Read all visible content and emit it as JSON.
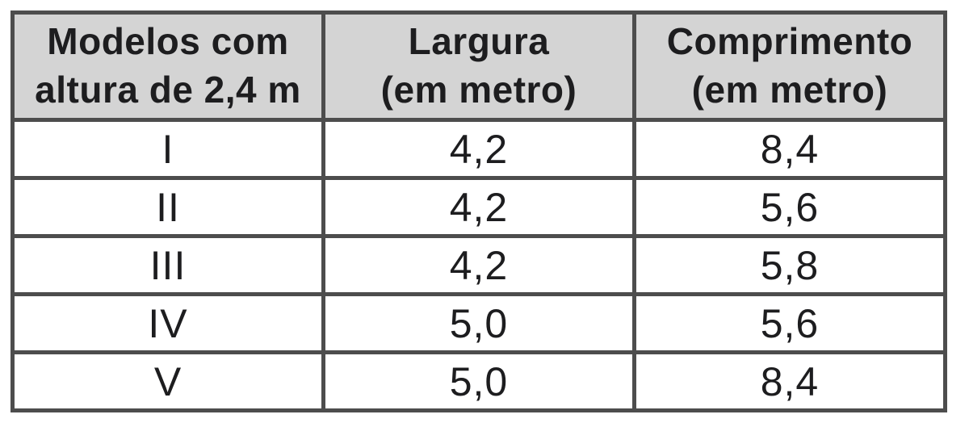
{
  "page": {
    "background": "#ffffff"
  },
  "table": {
    "style": {
      "header_bg": "#d4d4d4",
      "border_color": "#4d4d4d",
      "text_color": "#1d1d1f",
      "cell_bg": "#ffffff"
    },
    "headers": [
      {
        "label": "Modelos com altura de 2,4 m",
        "line1": "Modelos com",
        "line2": "altura de 2,4 m"
      },
      {
        "label": "Largura (em metro)",
        "line1": "Largura",
        "line2": "(em metro)"
      },
      {
        "label": "Comprimento (em metro)",
        "line1": "Comprimento",
        "line2": "(em metro)"
      }
    ],
    "rows": [
      {
        "model": "I",
        "largura": "4,2",
        "comprimento": "8,4"
      },
      {
        "model": "II",
        "largura": "4,2",
        "comprimento": "5,6"
      },
      {
        "model": "III",
        "largura": "4,2",
        "comprimento": "5,8"
      },
      {
        "model": "IV",
        "largura": "5,0",
        "comprimento": "5,6"
      },
      {
        "model": "V",
        "largura": "5,0",
        "comprimento": "8,4"
      }
    ]
  },
  "chart_data": {
    "type": "table",
    "columns": [
      "Modelos com altura de 2,4 m",
      "Largura (em metro)",
      "Comprimento (em metro)"
    ],
    "rows": [
      [
        "I",
        4.2,
        8.4
      ],
      [
        "II",
        4.2,
        5.6
      ],
      [
        "III",
        4.2,
        5.8
      ],
      [
        "IV",
        5.0,
        5.6
      ],
      [
        "V",
        5.0,
        8.4
      ]
    ],
    "notes": "Fixed height of all models: 2.4 m; widths and lengths in metres, decimal comma notation"
  }
}
